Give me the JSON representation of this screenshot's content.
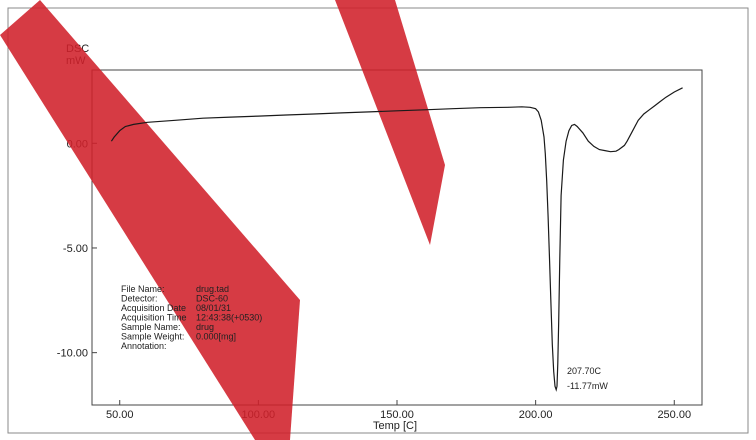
{
  "chart_data": {
    "type": "line",
    "title": "",
    "ylabel_line1": "DSC",
    "ylabel_line2": "mW",
    "xlabel": "Temp [C]",
    "xlim": [
      40,
      260
    ],
    "ylim": [
      -12.5,
      3.5
    ],
    "x_ticks": [
      50,
      100,
      150,
      200,
      250
    ],
    "x_tick_labels": [
      "50.00",
      "100.00",
      "150.00",
      "200.00",
      "250.00"
    ],
    "y_ticks": [
      0,
      -5,
      -10
    ],
    "y_tick_labels": [
      "0.00",
      "-5.00",
      "-10.00"
    ],
    "grid": false,
    "legend": "none",
    "line_color": "#1a1a1a",
    "watermark_color": "#d0202a",
    "series": [
      {
        "x": [
          47,
          48,
          50,
          52,
          55,
          60,
          70,
          80,
          90,
          100,
          110,
          120,
          130,
          140,
          150,
          160,
          170,
          180,
          190,
          195,
          198,
          200,
          201,
          202,
          203,
          203.5,
          204,
          204.5,
          205,
          205.5,
          206,
          206.5,
          207,
          207.4,
          207.7,
          208,
          208.3,
          208.7,
          209.2,
          210,
          211,
          212,
          213,
          214,
          215,
          217,
          219,
          221,
          223,
          225,
          227,
          229,
          230,
          232,
          233,
          235,
          237,
          239,
          241,
          243,
          245,
          247,
          250,
          253
        ],
        "y": [
          0.1,
          0.3,
          0.6,
          0.8,
          0.9,
          1.0,
          1.1,
          1.2,
          1.25,
          1.3,
          1.35,
          1.4,
          1.45,
          1.5,
          1.55,
          1.6,
          1.65,
          1.7,
          1.72,
          1.74,
          1.72,
          1.65,
          1.5,
          1.1,
          0.3,
          -0.5,
          -1.8,
          -3.5,
          -5.5,
          -7.6,
          -9.6,
          -10.9,
          -11.6,
          -11.77,
          -11.6,
          -10.5,
          -8.5,
          -5.5,
          -2.5,
          -0.8,
          0.1,
          0.6,
          0.85,
          0.9,
          0.8,
          0.5,
          0.1,
          -0.15,
          -0.3,
          -0.35,
          -0.4,
          -0.38,
          -0.3,
          -0.1,
          0.1,
          0.6,
          1.1,
          1.4,
          1.6,
          1.8,
          2.0,
          2.2,
          2.45,
          2.65
        ]
      }
    ],
    "peak_annotation": {
      "temperature": "207.70C",
      "value": "-11.77mW"
    },
    "file_info": [
      {
        "label": "File Name:",
        "value": "drug.tad"
      },
      {
        "label": "Detector:",
        "value": "DSC-60"
      },
      {
        "label": "Acquisition Date",
        "value": "08/01/31"
      },
      {
        "label": "Acquisition Time",
        "value": "12:43:38(+0530)"
      },
      {
        "label": "Sample Name:",
        "value": "drug"
      },
      {
        "label": "Sample Weight:",
        "value": "0.000[mg]"
      },
      {
        "label": "Annotation:",
        "value": ""
      }
    ]
  }
}
